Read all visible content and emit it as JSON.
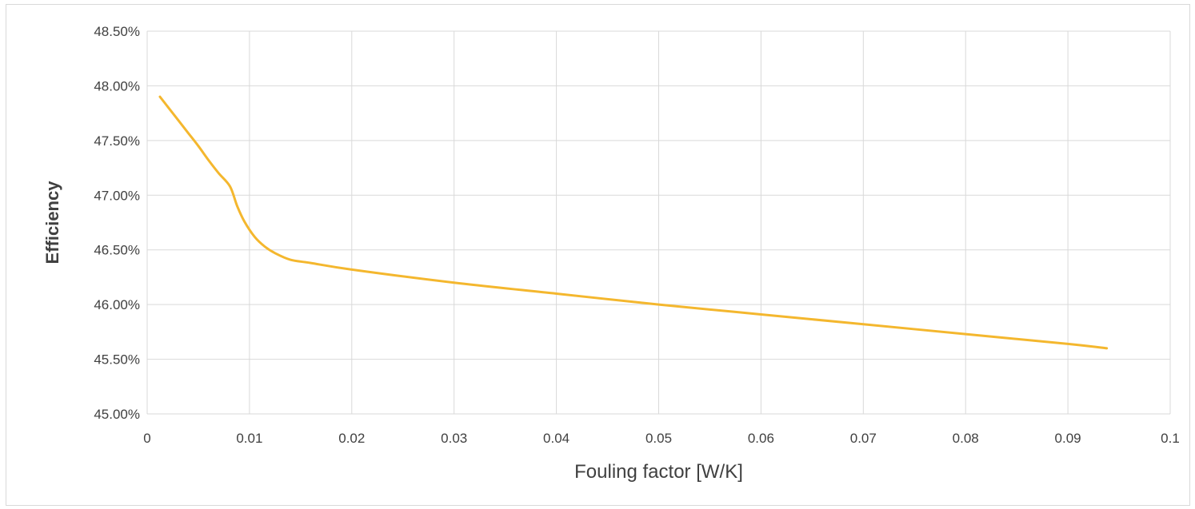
{
  "chart_data": {
    "type": "line",
    "xlabel": "Fouling factor [W/K]",
    "ylabel": "Efficiency",
    "xlim": [
      0,
      0.1
    ],
    "ylim": [
      0.45,
      0.485
    ],
    "x_ticks": [
      0,
      0.01,
      0.02,
      0.03,
      0.04,
      0.05,
      0.06,
      0.07,
      0.08,
      0.09,
      0.1
    ],
    "x_tick_labels": [
      "0",
      "0.01",
      "0.02",
      "0.03",
      "0.04",
      "0.05",
      "0.06",
      "0.07",
      "0.08",
      "0.09",
      "0.1"
    ],
    "y_ticks": [
      0.45,
      0.455,
      0.46,
      0.465,
      0.47,
      0.475,
      0.48,
      0.485
    ],
    "y_tick_labels": [
      "45.00%",
      "45.50%",
      "46.00%",
      "46.50%",
      "47.00%",
      "47.50%",
      "48.00%",
      "48.50%"
    ],
    "grid": true,
    "series": [
      {
        "color": "#F4B72E",
        "x": [
          0.00125,
          0.002,
          0.003,
          0.004,
          0.005,
          0.006,
          0.007,
          0.0081,
          0.0088,
          0.0095,
          0.0105,
          0.0115,
          0.0125,
          0.014,
          0.016,
          0.02,
          0.03,
          0.04,
          0.05,
          0.06,
          0.07,
          0.08,
          0.09,
          0.0938
        ],
        "y": [
          0.479,
          0.4781,
          0.4769,
          0.4757,
          0.4745,
          0.4732,
          0.472,
          0.4708,
          0.469,
          0.4676,
          0.4662,
          0.4653,
          0.4647,
          0.4641,
          0.4638,
          0.4632,
          0.462,
          0.461,
          0.46,
          0.4591,
          0.4582,
          0.4573,
          0.4564,
          0.456
        ]
      }
    ]
  }
}
